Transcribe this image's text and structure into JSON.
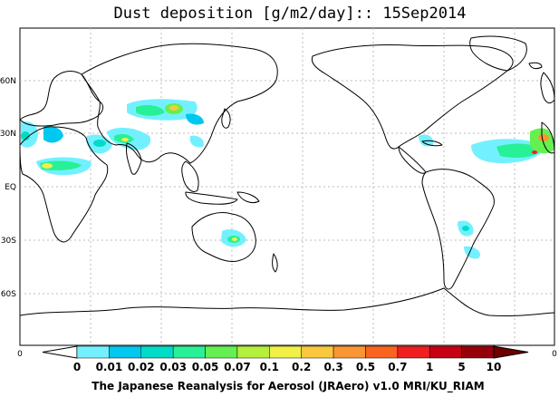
{
  "title": "Dust deposition [g/m2/day]:: 15Sep2014",
  "latitude_labels": [
    "60N",
    "30N",
    "EQ",
    "30S",
    "60S"
  ],
  "map_left_label": "0",
  "map_right_label": "0",
  "colorbar": {
    "labels": [
      "0",
      "0.01",
      "0.02",
      "0.03",
      "0.05",
      "0.07",
      "0.1",
      "0.2",
      "0.3",
      "0.5",
      "0.7",
      "1",
      "5",
      "10"
    ],
    "colors": [
      "#ffffff",
      "#73f0ff",
      "#00c8f0",
      "#00dcc8",
      "#28f096",
      "#64f050",
      "#b4f03c",
      "#f0f046",
      "#fac83c",
      "#fa9632",
      "#fa641e",
      "#f01e1e",
      "#c80014",
      "#96000a",
      "#6e0000"
    ]
  },
  "credit": "The Japanese Reanalysis for Aerosol (JRAero) v1.0 MRI/KU_RIAM"
}
